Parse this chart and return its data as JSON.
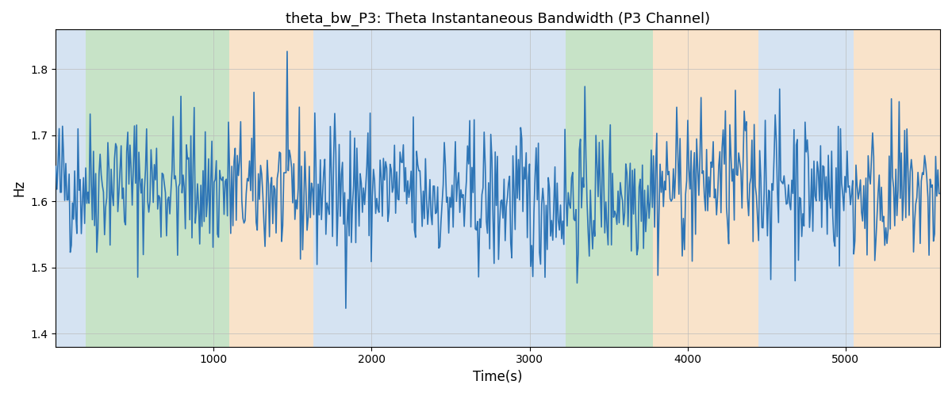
{
  "title": "theta_bw_P3: Theta Instantaneous Bandwidth (P3 Channel)",
  "xlabel": "Time(s)",
  "ylabel": "Hz",
  "xlim": [
    0,
    5600
  ],
  "ylim": [
    1.38,
    1.86
  ],
  "line_color": "#2e75b6",
  "line_width": 1.2,
  "background_color": "#ffffff",
  "grid_color": "#bbbbbb",
  "seed": 42,
  "n_points": 800,
  "x_start": 0,
  "x_end": 5600,
  "signal_mean": 1.615,
  "signal_std": 0.055,
  "colored_bands": [
    {
      "xmin": 0,
      "xmax": 190,
      "color": "#adc8e6",
      "alpha": 0.5
    },
    {
      "xmin": 190,
      "xmax": 1100,
      "color": "#90c890",
      "alpha": 0.5
    },
    {
      "xmin": 1100,
      "xmax": 1630,
      "color": "#f5c897",
      "alpha": 0.5
    },
    {
      "xmin": 1630,
      "xmax": 3100,
      "color": "#adc8e6",
      "alpha": 0.5
    },
    {
      "xmin": 3100,
      "xmax": 3230,
      "color": "#adc8e6",
      "alpha": 0.5
    },
    {
      "xmin": 3230,
      "xmax": 3780,
      "color": "#90c890",
      "alpha": 0.5
    },
    {
      "xmin": 3780,
      "xmax": 3900,
      "color": "#f5c897",
      "alpha": 0.5
    },
    {
      "xmin": 3900,
      "xmax": 4450,
      "color": "#f5c897",
      "alpha": 0.5
    },
    {
      "xmin": 4450,
      "xmax": 5050,
      "color": "#adc8e6",
      "alpha": 0.5
    },
    {
      "xmin": 5050,
      "xmax": 5600,
      "color": "#f5c897",
      "alpha": 0.5
    }
  ],
  "xticks": [
    1000,
    2000,
    3000,
    4000,
    5000
  ],
  "yticks": [
    1.4,
    1.5,
    1.6,
    1.7,
    1.8
  ]
}
